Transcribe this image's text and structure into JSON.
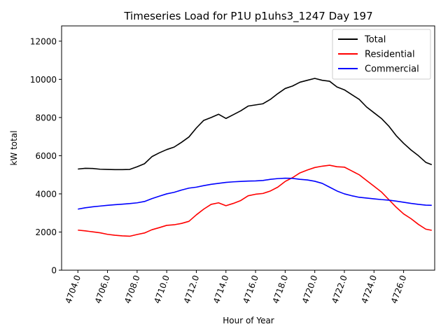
{
  "chart_data": {
    "type": "line",
    "title": "Timeseries Load for P1U p1uhs3_1247  Day 197",
    "xlabel": "Hour of Year",
    "ylabel": "kW total",
    "xlim": [
      4702.9,
      4728.1
    ],
    "ylim": [
      0,
      12800
    ],
    "xticks": [
      4704.0,
      4706.0,
      4708.0,
      4710.0,
      4712.0,
      4714.0,
      4716.0,
      4718.0,
      4720.0,
      4722.0,
      4724.0,
      4726.0
    ],
    "xtick_labels": [
      "4704.0",
      "4706.0",
      "4708.0",
      "4710.0",
      "4712.0",
      "4714.0",
      "4716.0",
      "4718.0",
      "4720.0",
      "4722.0",
      "4724.0",
      "4726.0"
    ],
    "yticks": [
      0,
      2000,
      4000,
      6000,
      8000,
      10000,
      12000
    ],
    "ytick_labels": [
      "0",
      "2000",
      "4000",
      "6000",
      "8000",
      "10000",
      "12000"
    ],
    "legend_position": "top-right",
    "x": [
      4704.0,
      4704.5,
      4705.0,
      4705.5,
      4706.0,
      4706.5,
      4707.0,
      4707.5,
      4708.0,
      4708.5,
      4709.0,
      4709.5,
      4710.0,
      4710.5,
      4711.0,
      4711.5,
      4712.0,
      4712.5,
      4713.0,
      4713.5,
      4714.0,
      4714.5,
      4715.0,
      4715.5,
      4716.0,
      4716.5,
      4717.0,
      4717.5,
      4718.0,
      4718.5,
      4719.0,
      4719.5,
      4720.0,
      4720.5,
      4721.0,
      4721.5,
      4722.0,
      4722.5,
      4723.0,
      4723.5,
      4724.0,
      4724.5,
      4725.0,
      4725.5,
      4726.0,
      4726.5,
      4727.0,
      4727.5,
      4727.9
    ],
    "series": [
      {
        "name": "Total",
        "color": "#000000",
        "values": [
          5300,
          5340,
          5330,
          5290,
          5280,
          5270,
          5270,
          5280,
          5420,
          5580,
          5950,
          6150,
          6320,
          6450,
          6700,
          6980,
          7450,
          7850,
          8000,
          8170,
          7950,
          8150,
          8350,
          8600,
          8660,
          8720,
          8950,
          9250,
          9520,
          9650,
          9850,
          9950,
          10050,
          9950,
          9900,
          9600,
          9450,
          9200,
          8950,
          8550,
          8250,
          7950,
          7550,
          7050,
          6650,
          6300,
          6000,
          5650,
          5530
        ]
      },
      {
        "name": "Residential",
        "color": "#ff0000",
        "values": [
          2100,
          2060,
          2010,
          1960,
          1880,
          1830,
          1800,
          1780,
          1870,
          1950,
          2120,
          2230,
          2350,
          2380,
          2450,
          2560,
          2900,
          3200,
          3450,
          3530,
          3380,
          3500,
          3650,
          3900,
          3980,
          4020,
          4150,
          4350,
          4650,
          4850,
          5100,
          5250,
          5380,
          5450,
          5500,
          5420,
          5400,
          5200,
          5000,
          4700,
          4400,
          4100,
          3700,
          3300,
          2950,
          2700,
          2400,
          2150,
          2090
        ]
      },
      {
        "name": "Commercial",
        "color": "#0000ff",
        "values": [
          3200,
          3270,
          3320,
          3360,
          3400,
          3430,
          3460,
          3490,
          3530,
          3600,
          3750,
          3880,
          4000,
          4080,
          4200,
          4300,
          4350,
          4430,
          4500,
          4550,
          4600,
          4630,
          4650,
          4670,
          4680,
          4700,
          4760,
          4800,
          4820,
          4810,
          4760,
          4730,
          4660,
          4550,
          4350,
          4150,
          4000,
          3900,
          3820,
          3780,
          3740,
          3700,
          3670,
          3620,
          3560,
          3500,
          3450,
          3410,
          3400
        ]
      }
    ]
  }
}
